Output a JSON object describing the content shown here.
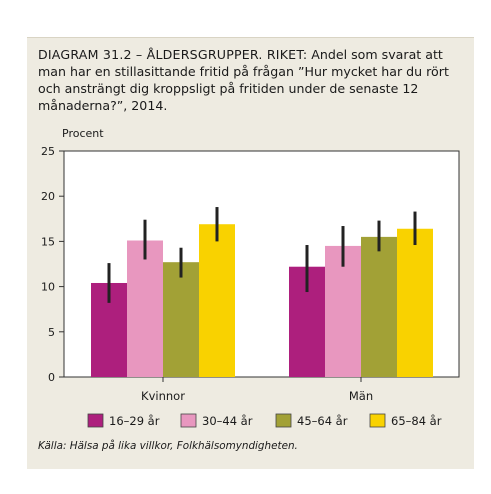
{
  "header": {
    "title_lead": "DIAGRAM 31.2 – ÅLDERSGRUPPER. RIKET:",
    "title_rest": " Andel som svarat att man har en stillasittande fritid på frågan ”Hur mycket har du rört och ansträngt dig kroppsligt på fritiden under de senaste 12 månaderna?”, 2014."
  },
  "footer": {
    "source": "Källa: Hälsa på lika villkor, Folkhälsomyndigheten."
  },
  "colors": {
    "background": "#eeebe1",
    "plot": "#ffffff",
    "errorbar": "#222222"
  },
  "chart_data": {
    "type": "bar",
    "title": "",
    "ylabel": "Procent",
    "xlabel": "",
    "ylim": [
      0,
      25
    ],
    "yticks": [
      0,
      5,
      10,
      15,
      20,
      25
    ],
    "categories": [
      "Kvinnor",
      "Män"
    ],
    "grid": false,
    "legend_position": "bottom",
    "series": [
      {
        "name": "16–29 år",
        "color": "#ad1f7d",
        "values": [
          10.4,
          12.2
        ],
        "ci_low": [
          8.2,
          9.4
        ],
        "ci_high": [
          12.6,
          14.6
        ]
      },
      {
        "name": "30–44 år",
        "color": "#e897bf",
        "values": [
          15.1,
          14.5
        ],
        "ci_low": [
          13.0,
          12.2
        ],
        "ci_high": [
          17.4,
          16.7
        ]
      },
      {
        "name": "45–64 år",
        "color": "#a2a136",
        "values": [
          12.7,
          15.5
        ],
        "ci_low": [
          11.0,
          13.9
        ],
        "ci_high": [
          14.3,
          17.3
        ]
      },
      {
        "name": "65–84 år",
        "color": "#f9d200",
        "values": [
          16.9,
          16.4
        ],
        "ci_low": [
          15.0,
          14.6
        ],
        "ci_high": [
          18.8,
          18.3
        ]
      }
    ]
  }
}
